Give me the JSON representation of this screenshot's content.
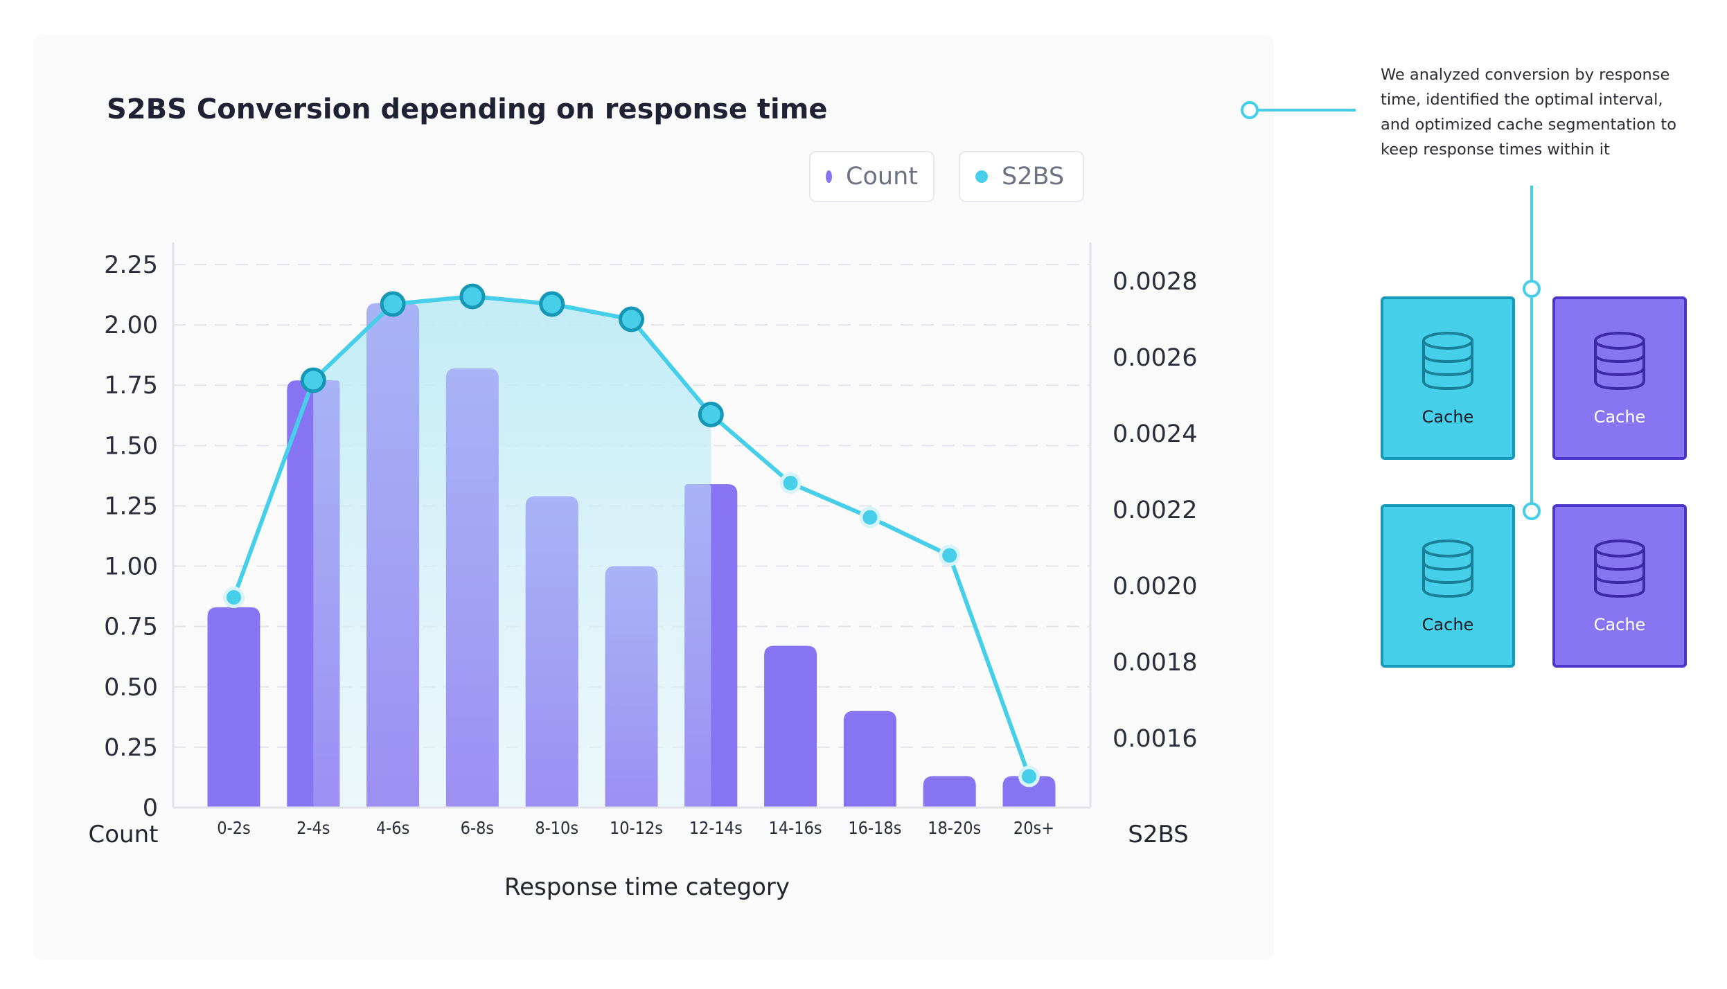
{
  "chart_data": {
    "type": "bar",
    "title": "S2BS Conversion depending on response time",
    "xlabel": "Response time category",
    "ylabel_left": "Count",
    "ylabel_right": "S2BS",
    "categories": [
      "0-2s",
      "2-4s",
      "4-6s",
      "6-8s",
      "8-10s",
      "10-12s",
      "12-14s",
      "14-16s",
      "16-18s",
      "18-20s",
      "20s+"
    ],
    "series": [
      {
        "name": "Count",
        "kind": "bar",
        "axis": "left",
        "values": [
          0.83,
          1.77,
          2.09,
          1.82,
          1.29,
          1.0,
          1.34,
          0.67,
          0.4,
          0.13,
          0.13
        ]
      },
      {
        "name": "S2BS",
        "kind": "line",
        "axis": "right",
        "values": [
          0.00197,
          0.00254,
          0.00274,
          0.00276,
          0.00274,
          0.0027,
          0.00245,
          0.00227,
          0.00218,
          0.00208,
          0.0015
        ]
      }
    ],
    "highlight_range": [
      "2-4s",
      "12-14s"
    ],
    "left_axis": {
      "ticks": [
        0,
        0.25,
        0.5,
        0.75,
        1.0,
        1.25,
        1.5,
        1.75,
        2.0,
        2.25
      ],
      "tick_labels": [
        "0",
        "0.25",
        "0.50",
        "0.75",
        "1.00",
        "1.25",
        "1.50",
        "1.75",
        "2.00",
        "2.25"
      ],
      "ylim": [
        0,
        2.25
      ]
    },
    "right_axis": {
      "ticks": [
        0.0016,
        0.0018,
        0.002,
        0.0022,
        0.0024,
        0.0026,
        0.0028
      ],
      "tick_labels": [
        "0.0016",
        "0.0018",
        "0.0020",
        "0.0022",
        "0.0024",
        "0.0026",
        "0.0028"
      ]
    },
    "legend": [
      "Count",
      "S2BS"
    ],
    "legend_position": "top-right",
    "grid": "horizontal dashed",
    "colors": {
      "count": "#8674f2",
      "count_light": "#a3a9f7",
      "s2bs": "#47cfea",
      "s2bs_dark": "#1697b6",
      "fill": "#bdeaf6"
    }
  },
  "annotation": {
    "text": "We analyzed conversion by response time, identified the optimal interval, and optimized cache segmentation to keep response times within it"
  },
  "cache_grid": [
    {
      "label": "Cache",
      "color": "teal",
      "icon": "database-icon"
    },
    {
      "label": "Cache",
      "color": "purple",
      "icon": "database-icon"
    },
    {
      "label": "Cache",
      "color": "teal",
      "icon": "database-icon"
    },
    {
      "label": "Cache",
      "color": "purple",
      "icon": "database-icon"
    }
  ]
}
